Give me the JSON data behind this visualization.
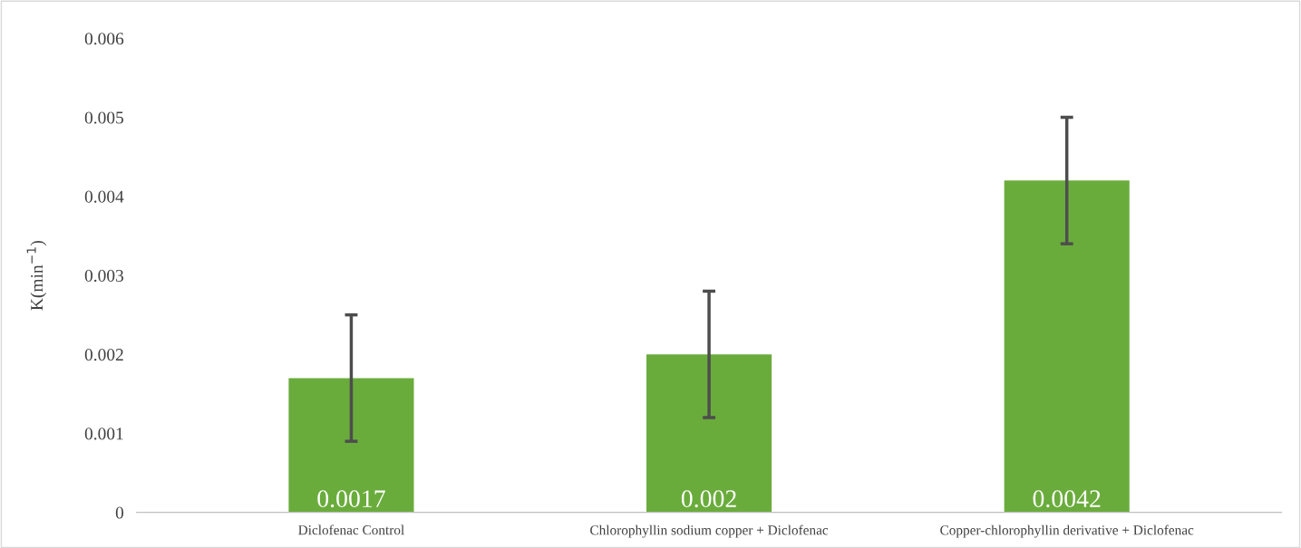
{
  "chart_data": {
    "type": "bar",
    "ylabel": "K(min$^{−1}$)",
    "categories": [
      "Diclofenac Control",
      "Chlorophyllin sodium copper + Diclofenac",
      "Copper-chlorophyllin derivative + Diclofenac"
    ],
    "values": [
      0.0017,
      0.002,
      0.0042
    ],
    "errors": [
      0.0008,
      0.0008,
      0.0008
    ],
    "color": "#6aac3c",
    "ylim": [
      0,
      0.006
    ],
    "yticks": [
      0,
      0.001,
      0.002,
      0.003,
      0.004,
      0.005,
      0.006
    ],
    "data_labels": true,
    "grid": false
  }
}
